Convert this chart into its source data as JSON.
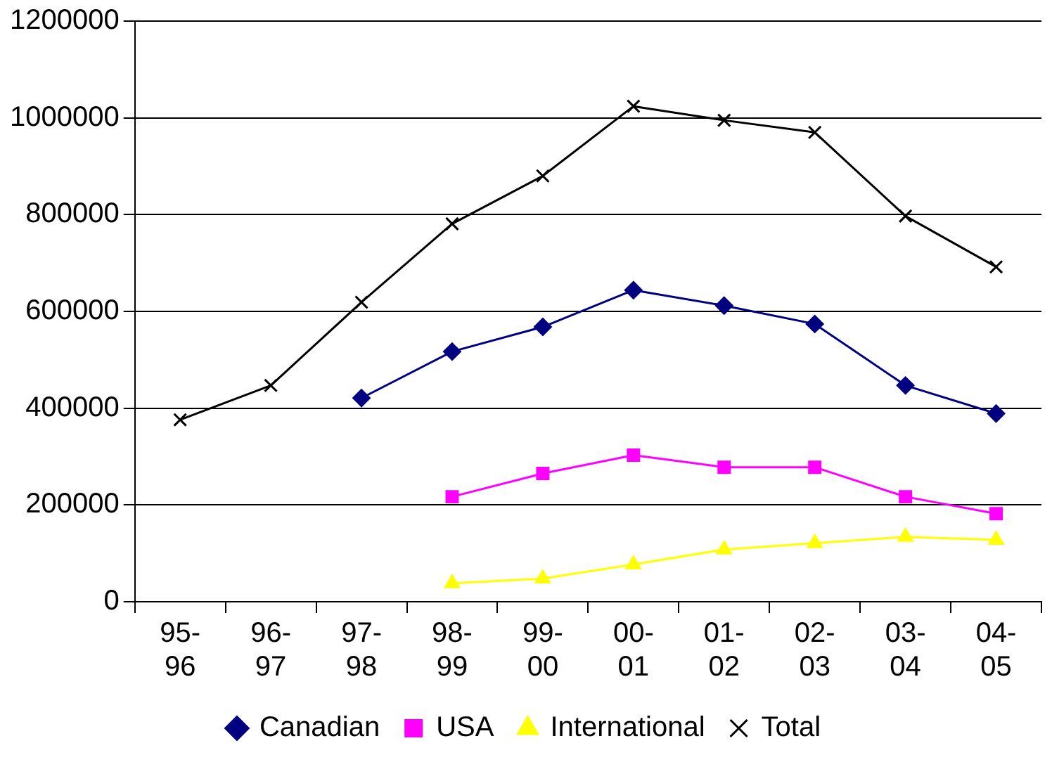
{
  "chart_data": {
    "type": "line",
    "categories": [
      "95-96",
      "96-97",
      "97-98",
      "98-99",
      "99-00",
      "00-01",
      "01-02",
      "02-03",
      "03-04",
      "04-05"
    ],
    "series": [
      {
        "name": "Canadian",
        "color": "#000080",
        "marker": "diamond",
        "values": [
          null,
          null,
          421000,
          517000,
          568000,
          644000,
          612000,
          574000,
          447000,
          389000
        ]
      },
      {
        "name": "USA",
        "color": "#ff00ff",
        "marker": "square",
        "values": [
          null,
          null,
          null,
          217000,
          265000,
          303000,
          278000,
          278000,
          217000,
          182000
        ]
      },
      {
        "name": "International",
        "color": "#ffff00",
        "marker": "triangle",
        "values": [
          null,
          null,
          null,
          38000,
          48000,
          77000,
          108000,
          121000,
          134000,
          128000
        ]
      },
      {
        "name": "Total",
        "color": "#000000",
        "marker": "cross",
        "values": [
          376000,
          447000,
          619000,
          781000,
          880000,
          1024000,
          995000,
          970000,
          797000,
          692000
        ]
      }
    ],
    "ylim": [
      0,
      1200000
    ],
    "yticks": [
      0,
      200000,
      400000,
      600000,
      800000,
      1000000,
      1200000
    ],
    "grid": "y",
    "legend": "bottom",
    "line_style": "solid"
  }
}
